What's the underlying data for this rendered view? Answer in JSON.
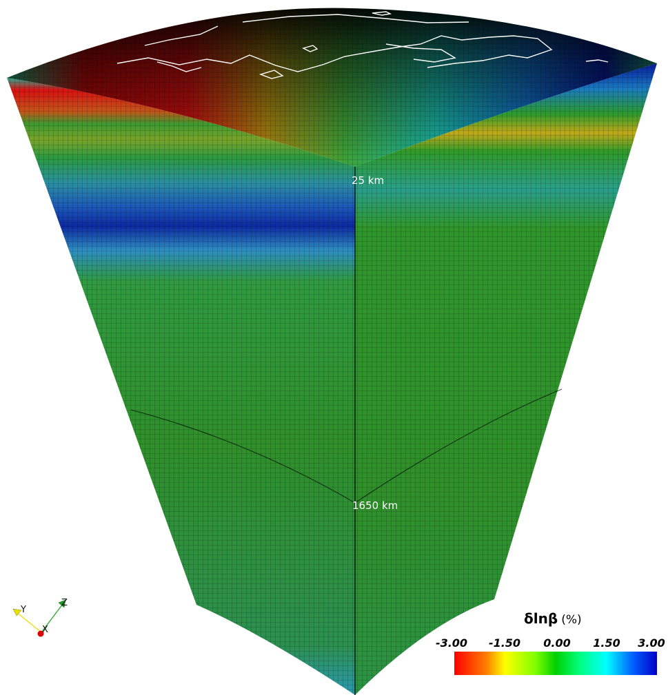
{
  "figure": {
    "depth_labels": {
      "shallow": "25 km",
      "deep": "1650 km"
    },
    "coastline_color": "#ffffff"
  },
  "axes_triad": {
    "y": "Y",
    "z": "Z",
    "x": "X",
    "y_color": "#e8e000",
    "z_color": "#1f9f1f",
    "x_color": "#e00000"
  },
  "legend": {
    "title_symbol": "δlnβ",
    "title_unit": "(%)",
    "ticks": [
      "-3.00",
      "-1.50",
      "0.00",
      "1.50",
      "3.00"
    ],
    "range": [
      -3.0,
      3.0
    ],
    "colormap": [
      "#ff0000",
      "#ffff00",
      "#00d000",
      "#00ffff",
      "#0000c8"
    ]
  }
}
